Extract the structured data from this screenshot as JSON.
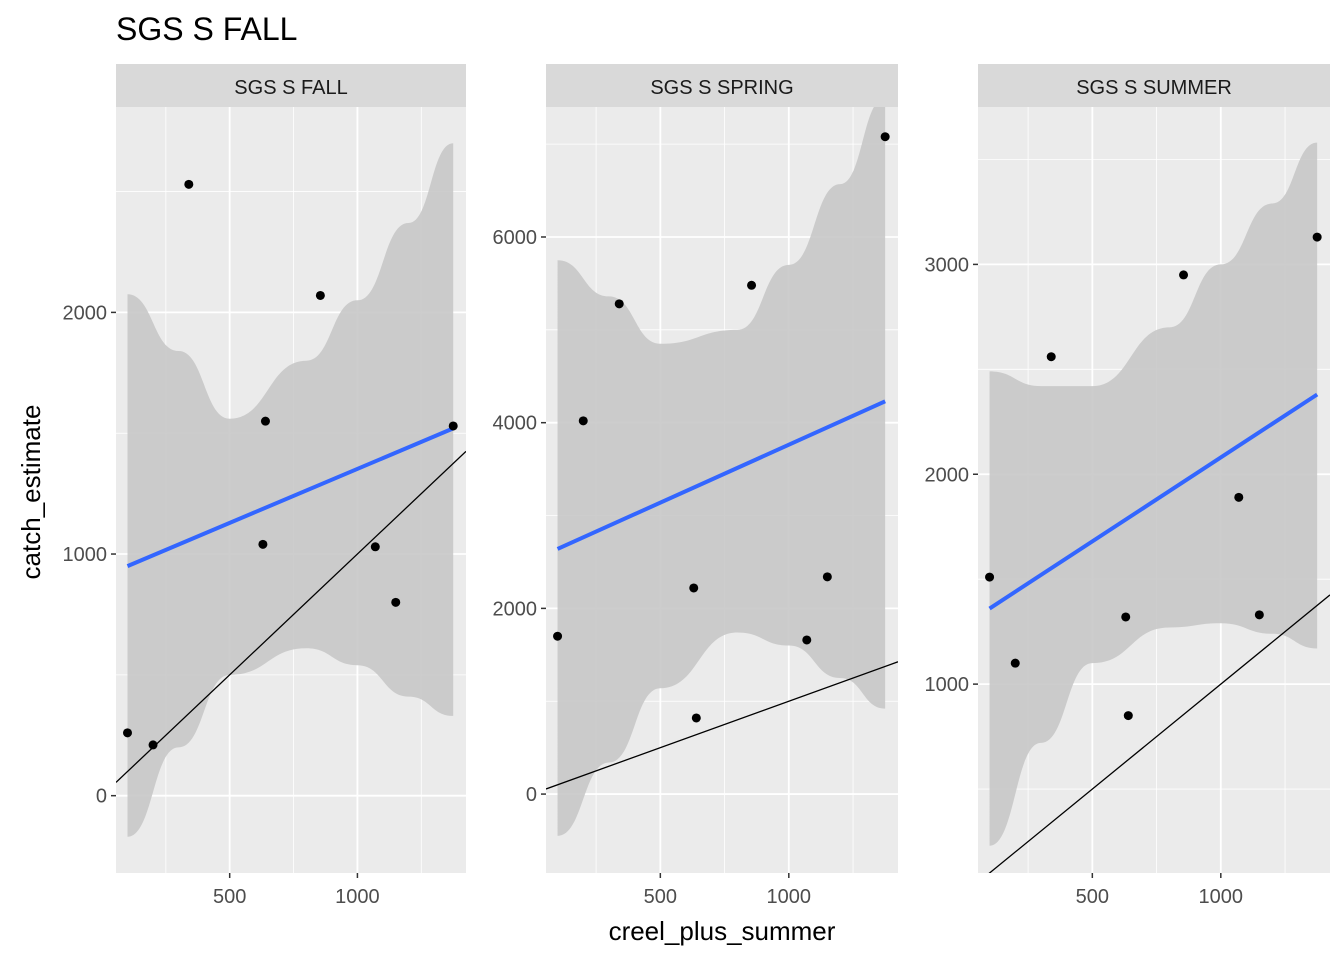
{
  "title": "SGS S FALL",
  "xlabel": "creel_plus_summer",
  "ylabel": "catch_estimate",
  "colors": {
    "panel_bg": "#EBEBEB",
    "strip_bg": "#D9D9D9",
    "grid": "#FFFFFF",
    "ribbon": "#C8C8C8",
    "fit_line": "#3366FF",
    "ref_line": "#000000",
    "points": "#000000",
    "axis_text": "#4D4D4D"
  },
  "chart_data": [
    {
      "type": "scatter",
      "facet": "SGS S FALL",
      "xlim": [
        55,
        1425
      ],
      "ylim": [
        -320,
        2850
      ],
      "xticks": [
        500,
        1000
      ],
      "yticks": [
        0,
        1000,
        2000
      ],
      "points": [
        {
          "x": 100,
          "y": 260
        },
        {
          "x": 200,
          "y": 210
        },
        {
          "x": 340,
          "y": 2530
        },
        {
          "x": 630,
          "y": 1040
        },
        {
          "x": 640,
          "y": 1550
        },
        {
          "x": 855,
          "y": 2070
        },
        {
          "x": 1070,
          "y": 1030
        },
        {
          "x": 1150,
          "y": 800
        },
        {
          "x": 1375,
          "y": 1530
        }
      ],
      "fit": [
        {
          "x": 100,
          "y": 950
        },
        {
          "x": 1375,
          "y": 1520
        }
      ],
      "ribbon": [
        {
          "x": 100,
          "lo": -170,
          "hi": 2075
        },
        {
          "x": 300,
          "lo": 200,
          "hi": 1840
        },
        {
          "x": 500,
          "lo": 500,
          "hi": 1560
        },
        {
          "x": 800,
          "lo": 610,
          "hi": 1800
        },
        {
          "x": 1000,
          "lo": 540,
          "hi": 2050
        },
        {
          "x": 1200,
          "lo": 410,
          "hi": 2370
        },
        {
          "x": 1375,
          "lo": 330,
          "hi": 2700
        }
      ],
      "reference_line": "y = x"
    },
    {
      "type": "scatter",
      "facet": "SGS S SPRING",
      "xlim": [
        55,
        1425
      ],
      "ylim": [
        -850,
        7400
      ],
      "xticks": [
        500,
        1000
      ],
      "yticks": [
        0,
        2000,
        4000,
        6000
      ],
      "points": [
        {
          "x": 100,
          "y": 1700
        },
        {
          "x": 200,
          "y": 4020
        },
        {
          "x": 340,
          "y": 5280
        },
        {
          "x": 630,
          "y": 2220
        },
        {
          "x": 640,
          "y": 820
        },
        {
          "x": 855,
          "y": 5480
        },
        {
          "x": 1070,
          "y": 1660
        },
        {
          "x": 1150,
          "y": 2340
        },
        {
          "x": 1375,
          "y": 7080
        }
      ],
      "fit": [
        {
          "x": 100,
          "y": 2640
        },
        {
          "x": 1375,
          "y": 4230
        }
      ],
      "ribbon": [
        {
          "x": 100,
          "lo": -450,
          "hi": 5750
        },
        {
          "x": 300,
          "lo": 340,
          "hi": 5360
        },
        {
          "x": 500,
          "lo": 1140,
          "hi": 4850
        },
        {
          "x": 800,
          "lo": 1740,
          "hi": 5000
        },
        {
          "x": 1000,
          "lo": 1600,
          "hi": 5700
        },
        {
          "x": 1200,
          "lo": 1250,
          "hi": 6570
        },
        {
          "x": 1375,
          "lo": 920,
          "hi": 7500
        }
      ],
      "reference_line": "y = x"
    },
    {
      "type": "scatter",
      "facet": "SGS S SUMMER",
      "xlim": [
        55,
        1425
      ],
      "ylim": [
        100,
        3750
      ],
      "xticks": [
        500,
        1000
      ],
      "yticks": [
        1000,
        2000,
        3000
      ],
      "points": [
        {
          "x": 100,
          "y": 1510
        },
        {
          "x": 200,
          "y": 1100
        },
        {
          "x": 340,
          "y": 2560
        },
        {
          "x": 630,
          "y": 1320
        },
        {
          "x": 640,
          "y": 850
        },
        {
          "x": 855,
          "y": 2950
        },
        {
          "x": 1070,
          "y": 1890
        },
        {
          "x": 1150,
          "y": 1330
        },
        {
          "x": 1375,
          "y": 3130
        }
      ],
      "fit": [
        {
          "x": 100,
          "y": 1360
        },
        {
          "x": 1375,
          "y": 2380
        }
      ],
      "ribbon": [
        {
          "x": 100,
          "lo": 230,
          "hi": 2490
        },
        {
          "x": 300,
          "lo": 720,
          "hi": 2420
        },
        {
          "x": 500,
          "lo": 1100,
          "hi": 2420
        },
        {
          "x": 800,
          "lo": 1270,
          "hi": 2700
        },
        {
          "x": 1000,
          "lo": 1290,
          "hi": 3000
        },
        {
          "x": 1200,
          "lo": 1240,
          "hi": 3290
        },
        {
          "x": 1375,
          "lo": 1170,
          "hi": 3580
        }
      ],
      "reference_line": "y = x"
    }
  ]
}
